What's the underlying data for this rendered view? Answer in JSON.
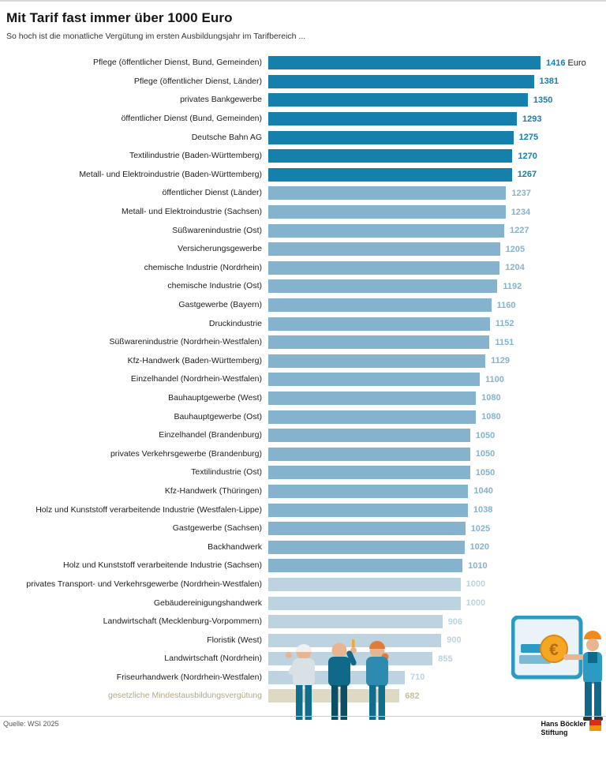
{
  "header": {
    "title": "Mit Tarif fast immer über 1000 Euro",
    "subtitle": "So hoch ist die monatliche Vergütung im ersten Ausbildungsjahr im Tarifbereich ..."
  },
  "chart_data": {
    "type": "bar",
    "orientation": "horizontal",
    "title": "Mit Tarif fast immer über 1000 Euro",
    "subtitle": "So hoch ist die monatliche Vergütung im ersten Ausbildungsjahr im Tarifbereich ...",
    "unit": "Euro",
    "xlim": [
      0,
      1480
    ],
    "grid": false,
    "legend": false,
    "categories": [
      "Pflege (öffentlicher Dienst, Bund, Gemeinden)",
      "Pflege (öffentlicher Dienst, Länder)",
      "privates Bankgewerbe",
      "öffentlicher Dienst (Bund, Gemeinden)",
      "Deutsche Bahn AG",
      "Textilindustrie (Baden-Württemberg)",
      "Metall- und Elektroindustrie (Baden-Württemberg)",
      "öffentlicher Dienst (Länder)",
      "Metall- und Elektroindustrie (Sachsen)",
      "Süßwarenindustrie (Ost)",
      "Versicherungsgewerbe",
      "chemische Industrie (Nordrhein)",
      "chemische Industrie (Ost)",
      "Gastgewerbe (Bayern)",
      "Druckindustrie",
      "Süßwarenindustrie (Nordrhein-Westfalen)",
      "Kfz-Handwerk (Baden-Württemberg)",
      "Einzelhandel (Nordrhein-Westfalen)",
      "Bauhauptgewerbe (West)",
      "Bauhauptgewerbe (Ost)",
      "Einzelhandel (Brandenburg)",
      "privates Verkehrsgewerbe (Brandenburg)",
      "Textilindustrie (Ost)",
      "Kfz-Handwerk (Thüringen)",
      "Holz und Kunststoff verarbeitende Industrie (Westfalen-Lippe)",
      "Gastgewerbe (Sachsen)",
      "Backhandwerk",
      "Holz und Kunststoff verarbeitende Industrie (Sachsen)",
      "privates Transport- und Verkehrsgewerbe (Nordrhein-Westfalen)",
      "Gebäudereinigungshandwerk",
      "Landwirtschaft (Mecklenburg-Vorpommern)",
      "Floristik (West)",
      "Landwirtschaft (Nordrhein)",
      "Friseurhandwerk (Nordrhein-Westfalen)",
      "gesetzliche Mindestausbildungsvergütung"
    ],
    "values": [
      1416,
      1381,
      1350,
      1293,
      1275,
      1270,
      1267,
      1237,
      1234,
      1227,
      1205,
      1204,
      1192,
      1160,
      1152,
      1151,
      1129,
      1100,
      1080,
      1080,
      1050,
      1050,
      1050,
      1040,
      1038,
      1025,
      1020,
      1010,
      1000,
      1000,
      906,
      900,
      855,
      710,
      682
    ],
    "tiers": [
      "dark",
      "dark",
      "dark",
      "dark",
      "dark",
      "dark",
      "dark",
      "medium",
      "medium",
      "medium",
      "medium",
      "medium",
      "medium",
      "medium",
      "medium",
      "medium",
      "medium",
      "medium",
      "medium",
      "medium",
      "medium",
      "medium",
      "medium",
      "medium",
      "medium",
      "medium",
      "medium",
      "medium",
      "light",
      "light",
      "light",
      "light",
      "light",
      "light",
      "beige"
    ]
  },
  "colors": {
    "bar": {
      "dark": "#1580ab",
      "medium": "#85b3cd",
      "light": "#bdd3e0",
      "beige": "#ded9c3"
    },
    "value": {
      "dark": "#1580ab",
      "medium": "#85b3cd",
      "light": "#bdd3e0",
      "beige": "#c8c09e"
    },
    "beige_label": "#b2a981"
  },
  "footer": {
    "source": "Quelle: WSI 2025",
    "logo_line1": "Hans Böckler",
    "logo_line2": "Stiftung"
  },
  "illustrations": {
    "apprentices": "three-apprentices-watching",
    "presenter": "presenter-with-euro-board"
  }
}
